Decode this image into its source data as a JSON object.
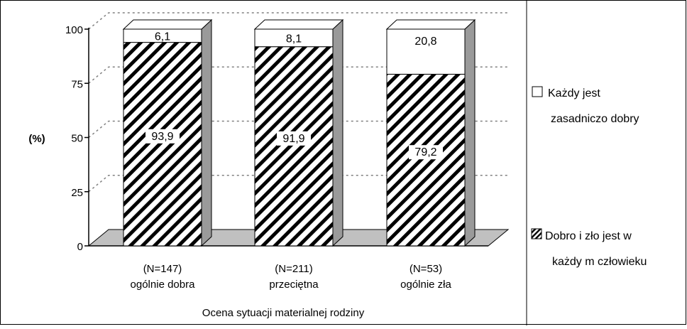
{
  "chart_data": {
    "type": "bar",
    "stacked": true,
    "three_d": true,
    "categories": [
      {
        "line1": "(N=147)",
        "line2": "ogólnie dobra"
      },
      {
        "line1": "(N=211)",
        "line2": "przeciętna"
      },
      {
        "line1": "(N=53)",
        "line2": "ogólnie zła"
      }
    ],
    "series": [
      {
        "key": "hatched",
        "values": [
          93.9,
          91.9,
          79.2
        ],
        "labels": [
          "93,9",
          "91,9",
          "79,2"
        ],
        "pattern": "diagonal-hatch"
      },
      {
        "key": "white",
        "values": [
          6.1,
          8.1,
          20.8
        ],
        "labels": [
          "6,1",
          "8,1",
          "20,8"
        ],
        "pattern": "solid-white"
      }
    ],
    "ylabel": "(%)",
    "xlabel": "Ocena sytuacji materialnej rodziny",
    "ylim": [
      0,
      100
    ],
    "yticks": [
      "0",
      "25",
      "50",
      "75",
      "100"
    ],
    "grid": true,
    "legend_position": "right",
    "legend": [
      {
        "series": "white",
        "line1": "Każdy  jest",
        "line2": "zasadniczo dobry"
      },
      {
        "series": "hatched",
        "line1": "Dobro i zło jest w",
        "line2": "każdy m  człowieku"
      }
    ],
    "colors": {
      "bar_fill": "#ffffff",
      "stroke": "#000000",
      "side": "#9a9a9a",
      "floor": "#c0c0c0",
      "grid": "#808080"
    }
  }
}
